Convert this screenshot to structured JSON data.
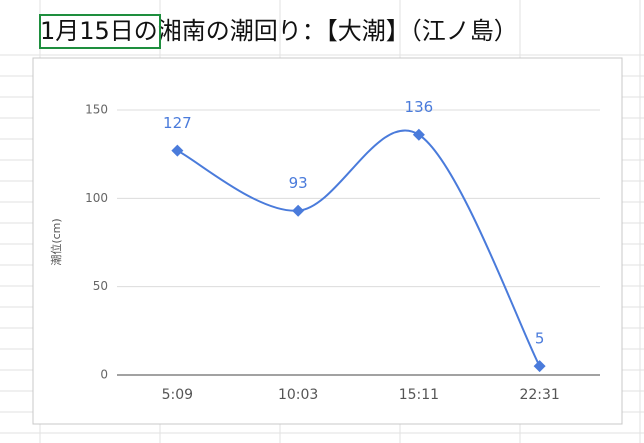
{
  "chart_data": {
    "type": "line",
    "title": "1月15日の湘南の潮回り：【大潮】（江ノ島）",
    "y_label": "潮位(cm)",
    "categories": [
      "5:09",
      "10:03",
      "15:11",
      "22:31"
    ],
    "values": [
      127,
      93,
      136,
      5
    ],
    "color": "#4a7bdb",
    "ylim": [
      0,
      150
    ],
    "yticks": [
      0,
      50,
      100,
      150
    ],
    "grid": true
  }
}
